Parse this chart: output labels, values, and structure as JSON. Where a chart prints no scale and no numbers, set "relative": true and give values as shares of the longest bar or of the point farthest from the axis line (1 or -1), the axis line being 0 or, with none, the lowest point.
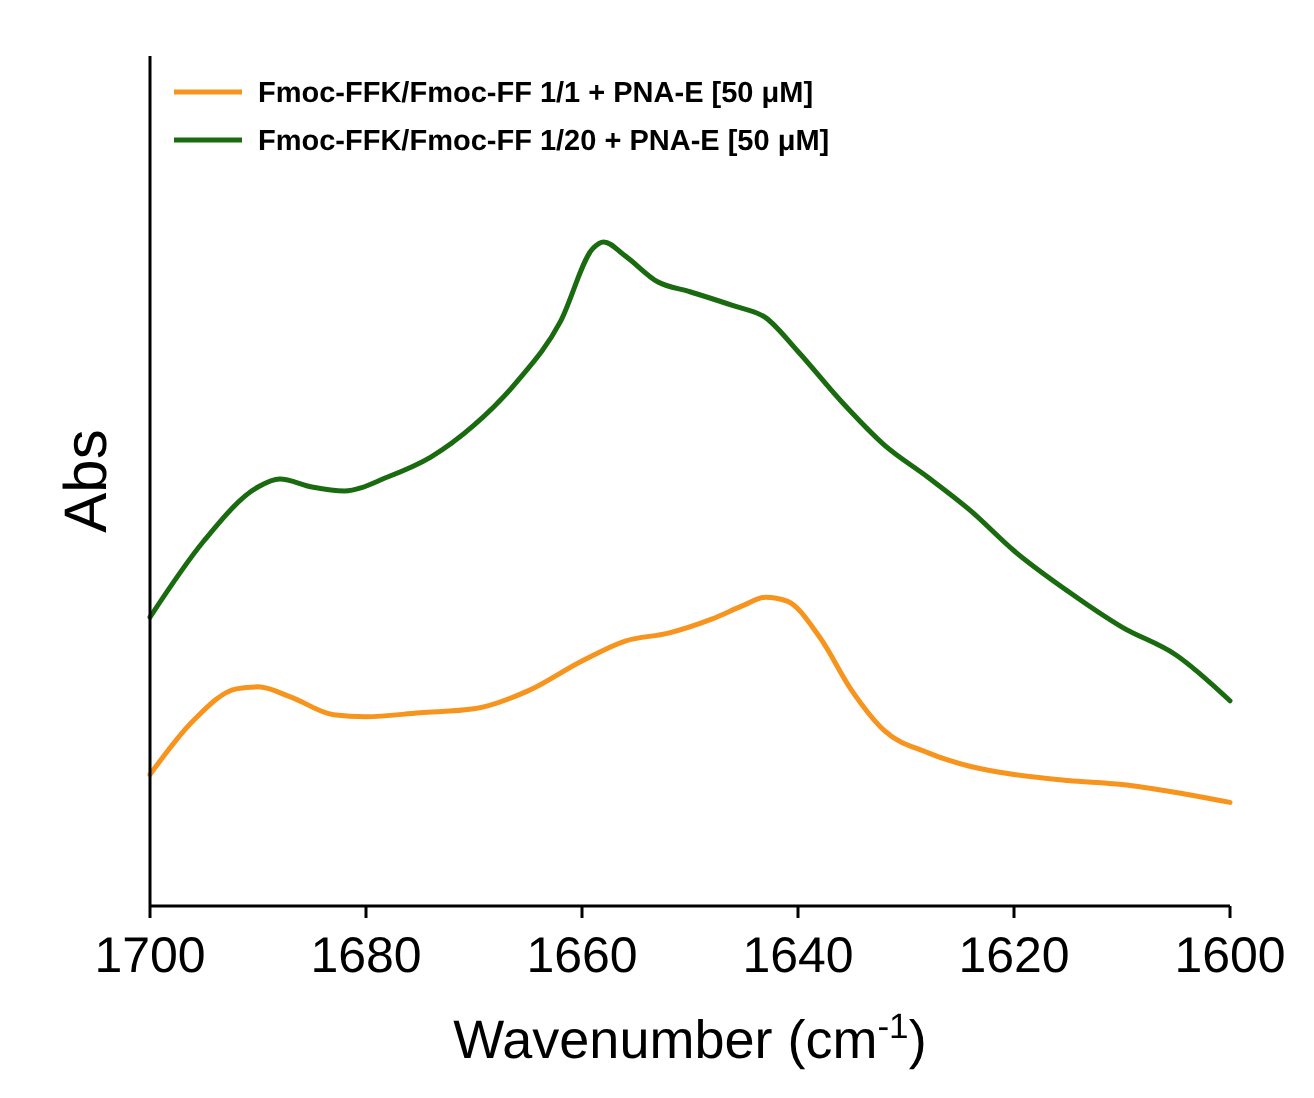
{
  "chart_data": {
    "type": "line",
    "relative": true,
    "xlabel": "Wavenumber (cm$^{-1}$)",
    "ylabel": "Abs",
    "xlim": [
      1700,
      1600
    ],
    "xticks": [
      1700,
      1680,
      1660,
      1640,
      1620,
      1600
    ],
    "legend": "top left",
    "grid": false,
    "line_style": "solid",
    "series": [
      {
        "name": "Fmoc-FFK/Fmoc-FF 1/1 + PNA-E [50 μM]",
        "color": "#f7941d",
        "x": [
          1700,
          1696,
          1692,
          1690,
          1687,
          1683,
          1680,
          1675,
          1670,
          1665,
          1660,
          1656,
          1652,
          1648,
          1645,
          1643,
          1641,
          1638,
          1635,
          1632,
          1628,
          1624,
          1620,
          1615,
          1610,
          1605,
          1600
        ],
        "values": [
          0.198,
          0.279,
          0.327,
          0.33,
          0.315,
          0.288,
          0.285,
          0.291,
          0.297,
          0.324,
          0.369,
          0.399,
          0.411,
          0.432,
          0.453,
          0.465,
          0.459,
          0.405,
          0.324,
          0.264,
          0.231,
          0.21,
          0.198,
          0.189,
          0.183,
          0.171,
          0.156
        ]
      },
      {
        "name": "Fmoc-FFK/Fmoc-FF 1/20 + PNA-E [50 μM]",
        "color": "#1a6b10",
        "x": [
          1700,
          1695,
          1690,
          1688,
          1685,
          1682,
          1678,
          1674,
          1670,
          1666,
          1662,
          1659,
          1658,
          1656,
          1653,
          1650,
          1646,
          1643,
          1640,
          1636,
          1632,
          1628,
          1624,
          1620,
          1615,
          1610,
          1605,
          1600
        ],
        "values": [
          0.435,
          0.55,
          0.631,
          0.643,
          0.631,
          0.625,
          0.646,
          0.676,
          0.724,
          0.79,
          0.88,
          0.99,
          1.0,
          0.979,
          0.94,
          0.925,
          0.904,
          0.886,
          0.835,
          0.76,
          0.694,
          0.646,
          0.595,
          0.535,
          0.474,
          0.42,
          0.378,
          0.309
        ]
      }
    ]
  }
}
